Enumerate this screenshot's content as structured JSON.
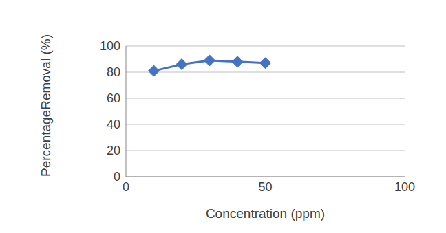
{
  "chart_data": {
    "type": "line",
    "x_label": "Concentration (ppm)",
    "y_label": "PercentageRemoval (%)",
    "x": [
      10,
      20,
      30,
      40,
      50
    ],
    "values": [
      81,
      86,
      89,
      88,
      87
    ],
    "color": "#4472c4",
    "marker": "diamond",
    "xlim": [
      0,
      100
    ],
    "xticks": [
      0,
      50,
      100
    ],
    "ylim": [
      0,
      100
    ],
    "yticks": [
      0,
      20,
      40,
      60,
      80,
      100
    ],
    "grid": true
  }
}
